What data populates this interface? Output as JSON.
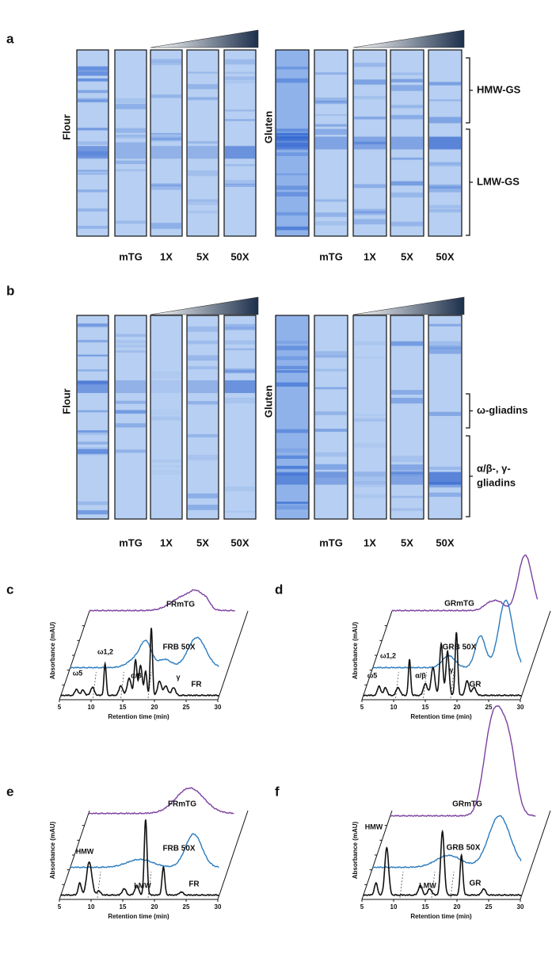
{
  "panels": {
    "a": {
      "label": "a",
      "groups": [
        {
          "name": "Flour",
          "lanes": [
            "mTG",
            "1X",
            "5X",
            "50X"
          ]
        },
        {
          "name": "Gluten",
          "lanes": [
            "mTG",
            "1X",
            "5X",
            "50X"
          ]
        }
      ],
      "brackets": [
        [
          "HMW-GS"
        ],
        [
          "LMW-GS"
        ]
      ]
    },
    "b": {
      "label": "b",
      "groups": [
        {
          "name": "Flour",
          "lanes": [
            "mTG",
            "1X",
            "5X",
            "50X"
          ]
        },
        {
          "name": "Gluten",
          "lanes": [
            "mTG",
            "1X",
            "5X",
            "50X"
          ]
        }
      ],
      "brackets": [
        [
          "ω-gliadins"
        ],
        [
          "α/β-, γ-",
          "gliadins"
        ]
      ]
    },
    "c": {
      "label": "c",
      "x_label": "Retention time (min)",
      "y_label": "Absorbance (mAU)",
      "x_ticks": [
        5,
        10,
        15,
        20,
        25,
        30
      ],
      "traces": [
        "FRmTG",
        "FRB 50X",
        "FR"
      ],
      "peaks": [
        "ω5",
        "ω1,2",
        "α/β",
        "γ"
      ]
    },
    "d": {
      "label": "d",
      "x_label": "Retention time (min)",
      "y_label": "Absorbance (mAU)",
      "x_ticks": [
        5,
        10,
        15,
        20,
        25,
        30
      ],
      "traces": [
        "GRmTG",
        "GRB 50X",
        "GR"
      ],
      "peaks": [
        "ω5",
        "ω1,2",
        "α/β",
        "γ"
      ]
    },
    "e": {
      "label": "e",
      "x_label": "Retention time (min)",
      "y_label": "Absorbance (mAU)",
      "x_ticks": [
        5,
        10,
        15,
        20,
        25,
        30
      ],
      "traces": [
        "FRmTG",
        "FRB 50X",
        "FR"
      ],
      "peaks": [
        "HMW",
        "LMW"
      ]
    },
    "f": {
      "label": "f",
      "x_label": "Retention time (min)",
      "y_label": "Absorbance (mAU)",
      "x_ticks": [
        5,
        10,
        15,
        20,
        25,
        30
      ],
      "traces": [
        "GRmTG",
        "GRB 50X",
        "GR"
      ],
      "peaks": [
        "HMW",
        "LMW"
      ]
    }
  }
}
